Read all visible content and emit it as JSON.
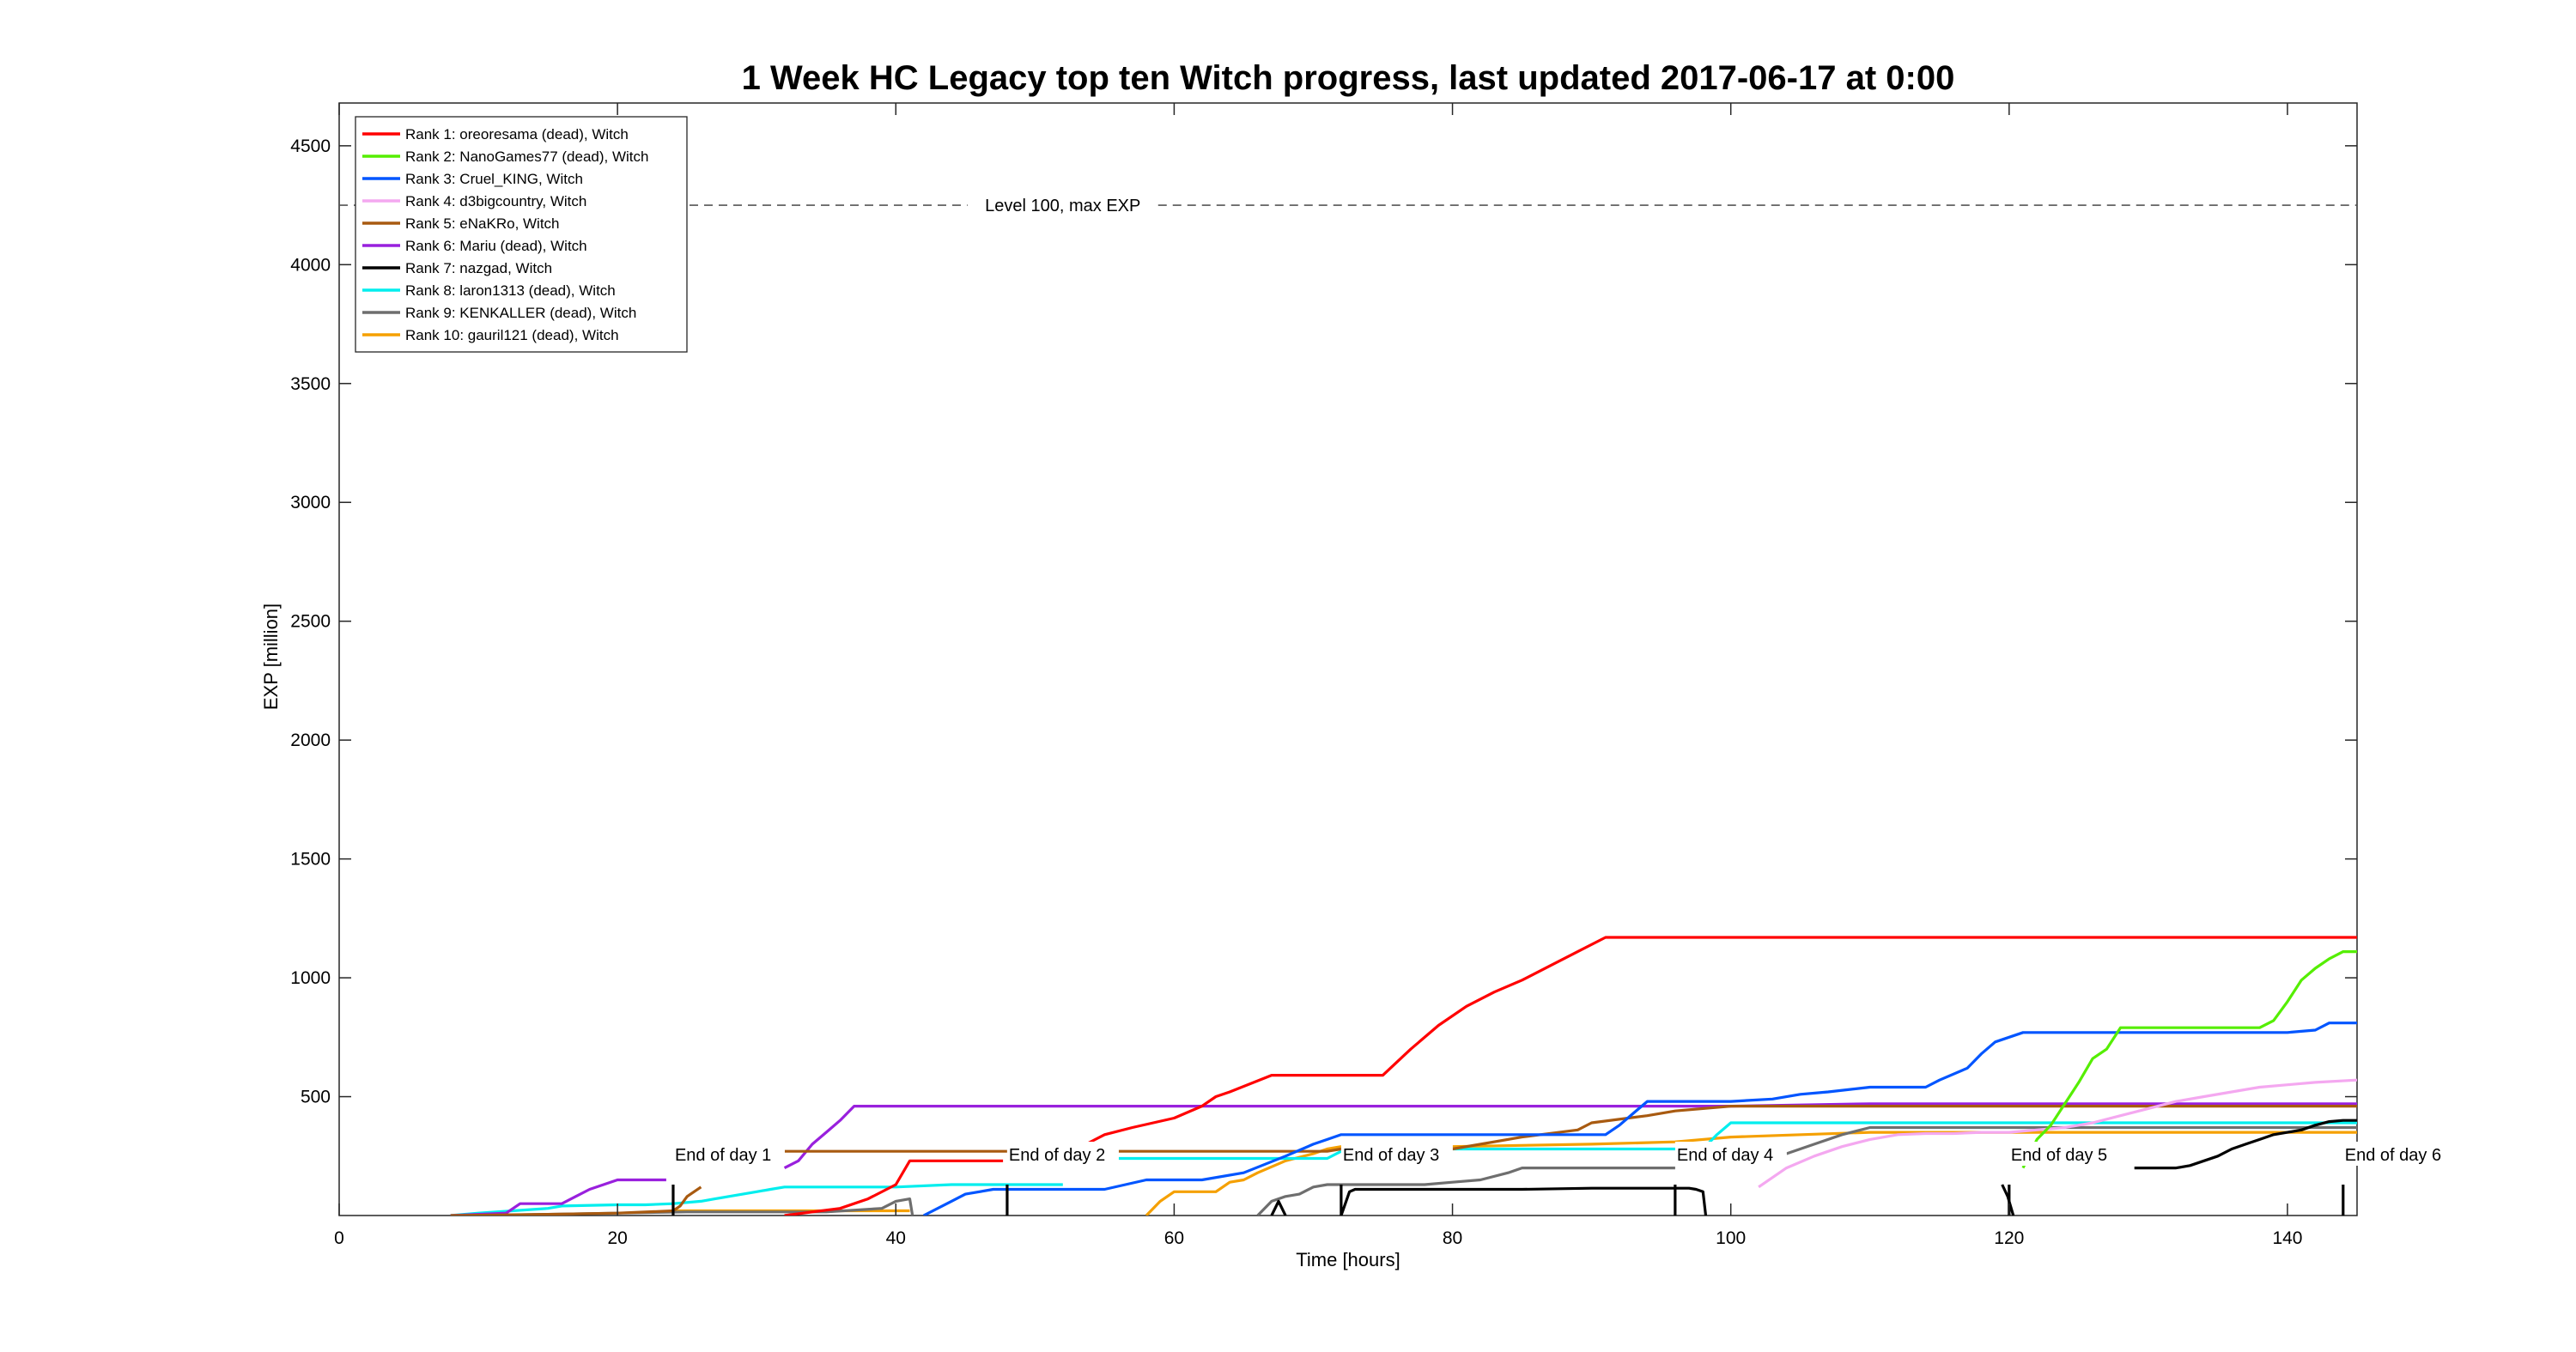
{
  "chart_data": {
    "type": "line",
    "title": "1 Week HC Legacy top ten Witch progress, last updated 2017-06-17 at 0:00",
    "xlabel": "Time [hours]",
    "ylabel": "EXP [million]",
    "xlim": [
      0,
      145
    ],
    "ylim": [
      0,
      4680
    ],
    "xticks": [
      0,
      20,
      40,
      60,
      80,
      100,
      120,
      140
    ],
    "yticks": [
      500,
      1000,
      1500,
      2000,
      2500,
      3000,
      3500,
      4000,
      4500
    ],
    "grid": false,
    "legend_position": "top-left",
    "max_exp": {
      "label": "Level 100, max EXP",
      "value": 4250,
      "label_x": 52
    },
    "day_markers": [
      {
        "x": 24,
        "label": "End of day 1"
      },
      {
        "x": 48,
        "label": "End of day 2"
      },
      {
        "x": 72,
        "label": "End of day 3"
      },
      {
        "x": 96,
        "label": "End of day 4"
      },
      {
        "x": 120,
        "label": "End of day 5"
      },
      {
        "x": 144,
        "label": "End of day 6"
      }
    ],
    "series": [
      {
        "name": "Rank 1: oreoresama (dead), Witch",
        "color": "#ff0000",
        "x": [
          32,
          36,
          38,
          40,
          41,
          47.7,
          null,
          53,
          55,
          57,
          60,
          62,
          63,
          64,
          67,
          70,
          75,
          77,
          79,
          81,
          83,
          85,
          87,
          89,
          91,
          145
        ],
        "y": [
          0,
          30,
          70,
          130,
          230,
          230,
          null,
          280,
          340,
          370,
          410,
          460,
          500,
          520,
          590,
          590,
          590,
          700,
          800,
          880,
          940,
          990,
          1050,
          1110,
          1170,
          1170
        ]
      },
      {
        "name": "Rank 2: NanoGames77 (dead), Witch",
        "color": "#55ee00",
        "x": [
          121,
          122,
          123,
          124,
          125,
          126,
          127,
          128,
          130,
          135,
          138,
          139,
          140,
          141,
          142,
          143,
          144,
          145
        ],
        "y": [
          200,
          320,
          380,
          470,
          560,
          660,
          700,
          790,
          790,
          790,
          790,
          820,
          900,
          990,
          1040,
          1080,
          1110,
          1110
        ]
      },
      {
        "name": "Rank 3: Cruel_KING, Witch",
        "color": "#0055ff",
        "x": [
          42,
          44,
          45,
          47,
          55,
          58,
          62,
          65,
          68,
          70,
          71,
          72,
          80,
          85,
          91,
          92,
          93,
          94,
          100,
          103,
          105,
          107,
          110,
          112,
          114,
          115,
          117,
          118,
          119,
          121,
          123,
          127,
          130,
          135,
          138,
          140,
          142,
          143,
          145
        ],
        "y": [
          0,
          60,
          90,
          110,
          110,
          150,
          150,
          180,
          250,
          300,
          320,
          340,
          340,
          340,
          340,
          380,
          430,
          480,
          480,
          490,
          510,
          520,
          540,
          540,
          540,
          570,
          620,
          680,
          730,
          770,
          770,
          770,
          770,
          770,
          770,
          770,
          780,
          810,
          810
        ]
      },
      {
        "name": "Rank 4: d3bigcountry, Witch",
        "color": "#f4a8f0",
        "x": [
          102,
          104,
          106,
          108,
          110,
          112,
          114,
          116,
          118,
          120,
          122,
          124,
          126,
          128,
          130,
          132,
          134,
          136,
          138,
          140,
          142,
          145
        ],
        "y": [
          120,
          200,
          250,
          290,
          320,
          340,
          345,
          345,
          350,
          350,
          360,
          370,
          390,
          420,
          450,
          480,
          500,
          520,
          540,
          550,
          560,
          570
        ]
      },
      {
        "name": "Rank 5: eNaKRo, Witch",
        "color": "#a85a10",
        "x": [
          8,
          15,
          20,
          24,
          24.5,
          25,
          26,
          null,
          32,
          48,
          null,
          56,
          71,
          72,
          80,
          85,
          89,
          90,
          94,
          96,
          100,
          110,
          120,
          130,
          145
        ],
        "y": [
          0,
          5,
          10,
          20,
          40,
          80,
          120,
          null,
          270,
          270,
          null,
          270,
          270,
          280,
          280,
          330,
          360,
          390,
          420,
          440,
          460,
          460,
          460,
          460,
          460
        ]
      },
      {
        "name": "Rank 6: Mariu (dead), Witch",
        "color": "#9920dd",
        "x": [
          8,
          12,
          13,
          16,
          17,
          18,
          19,
          20,
          22,
          23.5,
          null,
          32,
          33,
          34,
          35,
          36,
          37,
          60,
          90,
          100,
          110,
          145
        ],
        "y": [
          0,
          10,
          50,
          50,
          80,
          110,
          130,
          150,
          150,
          150,
          null,
          200,
          230,
          300,
          350,
          400,
          460,
          460,
          460,
          460,
          470,
          470
        ]
      },
      {
        "name": "Rank 7: nazgad, Witch",
        "color": "#000000",
        "x": [
          67,
          67.5,
          68,
          null,
          72,
          72.6,
          73,
          81,
          85,
          90,
          96,
          97,
          97.5,
          98,
          98.2,
          null,
          119.5,
          119.9,
          120.3,
          null,
          129,
          132,
          133,
          134,
          135,
          136,
          137,
          138,
          139,
          140,
          141,
          142,
          143,
          144,
          145
        ],
        "y": [
          0,
          60,
          0,
          null,
          0,
          100,
          110,
          110,
          110,
          115,
          115,
          115,
          110,
          100,
          0,
          null,
          130,
          80,
          0,
          null,
          200,
          200,
          210,
          230,
          250,
          280,
          300,
          320,
          340,
          350,
          360,
          380,
          395,
          400,
          400
        ]
      },
      {
        "name": "Rank 8: laron1313 (dead), Witch",
        "color": "#00eeee",
        "x": [
          8,
          10,
          15,
          16,
          20,
          22,
          24,
          26,
          27,
          28,
          29,
          30,
          31,
          32,
          34,
          40,
          44,
          46,
          52,
          null,
          56,
          71,
          72,
          80,
          90,
          98,
          99,
          100,
          110,
          120,
          130,
          145
        ],
        "y": [
          0,
          10,
          30,
          40,
          45,
          45,
          50,
          60,
          70,
          80,
          90,
          100,
          110,
          120,
          120,
          120,
          130,
          130,
          130,
          null,
          240,
          240,
          270,
          280,
          280,
          280,
          340,
          390,
          390,
          390,
          390,
          390
        ]
      },
      {
        "name": "Rank 9: KENKALLER (dead), Witch",
        "color": "#6e6e6e",
        "x": [
          10,
          15,
          20,
          25,
          35,
          39,
          40,
          41,
          41.2,
          null,
          66,
          67,
          68,
          69,
          70,
          71,
          72,
          75,
          78,
          80,
          82,
          84,
          85,
          86,
          87,
          96,
          null,
          104,
          106,
          108,
          110,
          120,
          130,
          145
        ],
        "y": [
          0,
          5,
          10,
          15,
          15,
          30,
          60,
          70,
          0,
          null,
          0,
          60,
          80,
          90,
          120,
          130,
          130,
          130,
          130,
          140,
          150,
          180,
          200,
          200,
          200,
          200,
          null,
          260,
          300,
          340,
          370,
          370,
          370,
          370
        ]
      },
      {
        "name": "Rank 10: gauril121 (dead), Witch",
        "color": "#f5a000",
        "x": [
          24,
          30,
          35,
          40,
          41,
          null,
          58,
          59,
          60,
          63,
          64,
          65,
          66,
          68,
          70,
          71,
          72,
          80,
          90,
          96,
          100,
          110,
          120,
          145
        ],
        "y": [
          20,
          20,
          20,
          20,
          20,
          null,
          0,
          60,
          100,
          100,
          140,
          150,
          180,
          230,
          260,
          280,
          290,
          290,
          300,
          310,
          330,
          350,
          350,
          350
        ]
      }
    ]
  }
}
